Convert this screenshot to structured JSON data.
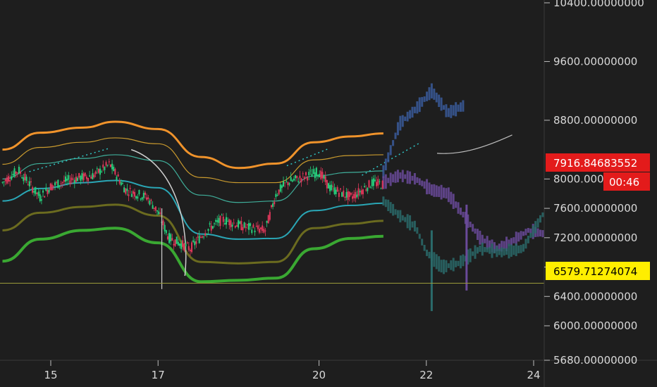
{
  "chart_data": {
    "type": "candlestick",
    "y_axis": {
      "min": 5680,
      "max": 10400,
      "ticks": [
        "10400.00000000",
        "9600.00000000",
        "8800.00000000",
        "8000.00000000",
        "7600.00000000",
        "7200.00000000",
        "6800.00000000",
        "6400.00000000",
        "6000.00000000",
        "5680.00000000"
      ],
      "tick_values": [
        10400,
        9600,
        8800,
        8000,
        7600,
        7200,
        6800,
        6400,
        6000,
        5680
      ]
    },
    "x_axis": {
      "ticks": [
        "15",
        "17",
        "20",
        "22",
        "24"
      ],
      "tick_values": [
        15,
        17,
        20,
        22,
        24
      ],
      "min": 14.1,
      "max": 24.2
    },
    "price_tags": {
      "current_price": "7916.84683552",
      "countdown": "00:46",
      "support_level": "6579.71274074",
      "current_value": 7916.85,
      "support_value": 6579.71
    },
    "colors": {
      "background": "#1e1e1e",
      "candle_up": "#26d07c",
      "candle_down": "#e0375a",
      "band_outer_upper": "#f0932b",
      "band_upper": "#c99a2e",
      "band_mid_upper": "#3fae9a",
      "band_mid": "#2aa6b5",
      "band_lower": "#6b6b1f",
      "band_outer_lower": "#3aa832",
      "projection_blue": "#3a5a9a",
      "projection_purple": "#6a4a9a",
      "projection_teal": "#2a6a6a",
      "support_line": "#9a9a3a",
      "price_tag_red": "#e31b1b",
      "support_tag_yellow": "#ffee00"
    },
    "bands": [
      {
        "name": "upper-outer",
        "x": [
          14.1,
          14.8,
          15.6,
          16.2,
          17.0,
          17.8,
          18.5,
          19.2,
          19.9,
          20.6,
          21.2
        ],
        "y": [
          8400,
          8630,
          8700,
          8780,
          8680,
          8300,
          8150,
          8210,
          8500,
          8580,
          8620
        ]
      },
      {
        "name": "upper",
        "x": [
          14.1,
          14.8,
          15.6,
          16.2,
          17.0,
          17.8,
          18.5,
          19.2,
          19.9,
          20.6,
          21.2
        ],
        "y": [
          8200,
          8430,
          8500,
          8560,
          8480,
          8020,
          7950,
          7950,
          8260,
          8320,
          8330
        ]
      },
      {
        "name": "mid-upper",
        "x": [
          14.1,
          14.8,
          15.6,
          16.2,
          17.0,
          17.8,
          18.5,
          19.2,
          19.9,
          20.6,
          21.2
        ],
        "y": [
          8000,
          8210,
          8280,
          8330,
          8250,
          7780,
          7680,
          7700,
          8040,
          8090,
          8110
        ]
      },
      {
        "name": "mid",
        "x": [
          14.1,
          14.8,
          15.6,
          16.2,
          17.0,
          17.8,
          18.5,
          19.2,
          19.9,
          20.6,
          21.2
        ],
        "y": [
          7700,
          7870,
          7950,
          7980,
          7880,
          7250,
          7180,
          7190,
          7570,
          7640,
          7670
        ]
      },
      {
        "name": "lower",
        "x": [
          14.1,
          14.8,
          15.6,
          16.2,
          17.0,
          17.8,
          18.5,
          19.2,
          19.9,
          20.6,
          21.2
        ],
        "y": [
          7300,
          7540,
          7620,
          7650,
          7500,
          6870,
          6850,
          6870,
          7330,
          7390,
          7430
        ]
      },
      {
        "name": "lower-outer",
        "x": [
          14.1,
          14.8,
          15.6,
          16.2,
          17.0,
          17.8,
          18.5,
          19.2,
          19.9,
          20.6,
          21.2
        ],
        "y": [
          6880,
          7180,
          7300,
          7330,
          7130,
          6600,
          6620,
          6650,
          7050,
          7190,
          7220
        ]
      }
    ],
    "price_path": {
      "x": [
        14.1,
        14.4,
        14.8,
        15.0,
        15.4,
        15.8,
        16.1,
        16.4,
        16.8,
        17.0,
        17.2,
        17.6,
        17.9,
        18.2,
        18.6,
        19.0,
        19.2,
        19.4,
        19.8,
        20.0,
        20.2,
        20.6,
        21.0,
        21.2
      ],
      "y": [
        7950,
        8120,
        7750,
        7900,
        8000,
        8050,
        8200,
        7850,
        7750,
        7550,
        7200,
        7050,
        7300,
        7450,
        7350,
        7300,
        7800,
        7950,
        8050,
        8100,
        7880,
        7750,
        7950,
        7920
      ]
    },
    "projections": [
      {
        "name": "upper-projection",
        "x": [
          21.2,
          21.5,
          21.8,
          22.1,
          22.4,
          22.7
        ],
        "y": [
          8100,
          8750,
          8950,
          9200,
          8900,
          9000
        ]
      },
      {
        "name": "mid-projection",
        "x": [
          21.2,
          21.5,
          21.8,
          22.1,
          22.4,
          22.7,
          23.0,
          23.3,
          23.6,
          23.9,
          24.2
        ],
        "y": [
          7950,
          8050,
          8000,
          7850,
          7800,
          7500,
          7200,
          7050,
          7150,
          7300,
          7250
        ]
      },
      {
        "name": "lower-projection",
        "x": [
          21.2,
          21.5,
          21.8,
          22.0,
          22.3,
          22.6,
          23.0,
          23.4,
          23.8,
          24.2
        ],
        "y": [
          7700,
          7500,
          7350,
          7000,
          6800,
          6850,
          7050,
          7000,
          7050,
          7550
        ]
      }
    ]
  }
}
